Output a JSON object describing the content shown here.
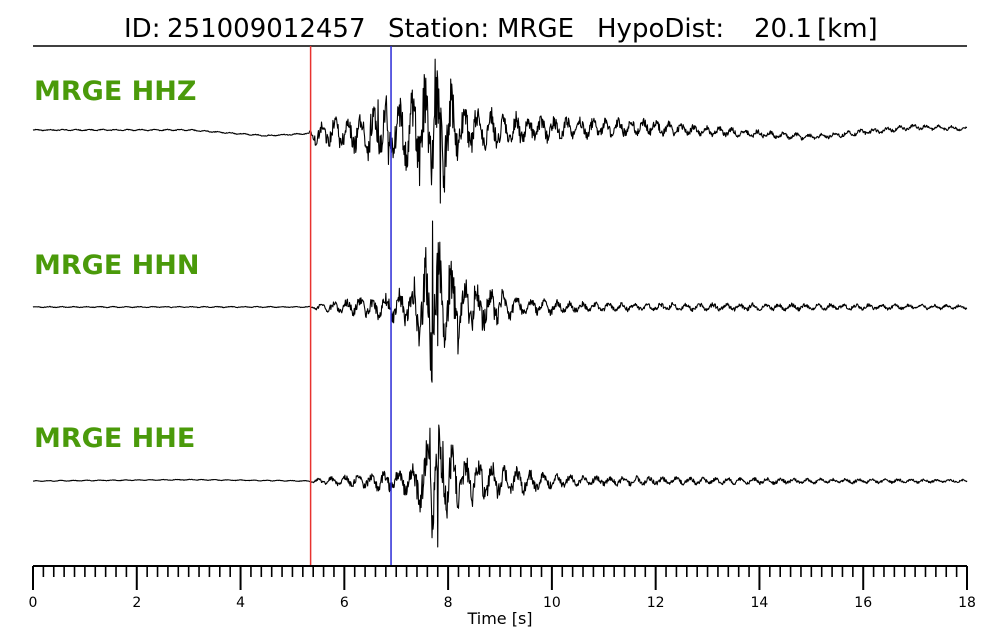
{
  "header": {
    "id_label": "ID:",
    "id_value": "251009012457",
    "station_label": "Station:",
    "station_value": "MRGE",
    "hypodist_label": "HypoDist:",
    "hypodist_value": "20.1",
    "hypodist_unit": "[km]"
  },
  "chart_data": {
    "type": "line",
    "xlabel": "Time [s]",
    "xlim": [
      0,
      18
    ],
    "major_ticks": [
      0,
      2,
      4,
      6,
      8,
      10,
      12,
      14,
      16,
      18
    ],
    "minor_tick_step": 0.2,
    "picks": [
      {
        "time": 5.35,
        "color": "#e8322f"
      },
      {
        "time": 6.9,
        "color": "#2b2bd6"
      }
    ],
    "label_color": "#4a9a0a",
    "trace_color": "#000000",
    "series": [
      {
        "name": "MRGE HHZ",
        "noise": 0.012,
        "env": [
          [
            0,
            0.012
          ],
          [
            5.3,
            0.012
          ],
          [
            5.45,
            0.18
          ],
          [
            6.2,
            0.3
          ],
          [
            6.7,
            0.55
          ],
          [
            7.1,
            0.5
          ],
          [
            7.6,
            0.95
          ],
          [
            7.8,
            1.0
          ],
          [
            8.3,
            0.5
          ],
          [
            9.0,
            0.28
          ],
          [
            10.5,
            0.16
          ],
          [
            12.0,
            0.12
          ],
          [
            13.5,
            0.07
          ],
          [
            15.0,
            0.05
          ],
          [
            18,
            0.04
          ]
        ],
        "drift": [
          [
            0,
            0
          ],
          [
            3,
            0
          ],
          [
            4.5,
            -0.08
          ],
          [
            5.3,
            -0.05
          ],
          [
            11.8,
            0.04
          ],
          [
            15.0,
            -0.1
          ],
          [
            17,
            0.04
          ],
          [
            18,
            0.02
          ]
        ],
        "period": 0.25,
        "seed": 11,
        "peaks": [
          [
            6.65,
            0.45
          ],
          [
            6.85,
            -0.45
          ],
          [
            7.3,
            0.4
          ],
          [
            7.75,
            1.0
          ],
          [
            7.85,
            -1.0
          ]
        ]
      },
      {
        "name": "MRGE HHN",
        "noise": 0.008,
        "env": [
          [
            0,
            0.008
          ],
          [
            5.3,
            0.008
          ],
          [
            5.45,
            0.05
          ],
          [
            6.3,
            0.12
          ],
          [
            6.9,
            0.18
          ],
          [
            7.3,
            0.28
          ],
          [
            7.7,
            1.0
          ],
          [
            7.9,
            0.75
          ],
          [
            8.5,
            0.35
          ],
          [
            9.5,
            0.12
          ],
          [
            11.0,
            0.06
          ],
          [
            14.0,
            0.05
          ],
          [
            18,
            0.03
          ]
        ],
        "drift": [
          [
            0,
            0
          ],
          [
            18,
            0
          ]
        ],
        "period": 0.25,
        "seed": 23,
        "peaks": [
          [
            7.7,
            1.0
          ],
          [
            7.8,
            -0.45
          ],
          [
            7.35,
            0.35
          ]
        ]
      },
      {
        "name": "MRGE HHE",
        "noise": 0.008,
        "env": [
          [
            0,
            0.008
          ],
          [
            5.3,
            0.008
          ],
          [
            5.45,
            0.04
          ],
          [
            6.3,
            0.12
          ],
          [
            6.9,
            0.2
          ],
          [
            7.3,
            0.25
          ],
          [
            7.6,
            0.85
          ],
          [
            7.75,
            0.95
          ],
          [
            8.2,
            0.45
          ],
          [
            9.0,
            0.3
          ],
          [
            10.0,
            0.12
          ],
          [
            12.0,
            0.07
          ],
          [
            15.0,
            0.05
          ],
          [
            18,
            0.03
          ]
        ],
        "drift": [
          [
            0,
            0
          ],
          [
            3,
            0.02
          ],
          [
            5.3,
            0
          ],
          [
            18,
            0
          ]
        ],
        "period": 0.25,
        "seed": 37,
        "peaks": [
          [
            7.65,
            0.8
          ],
          [
            7.8,
            -1.0
          ],
          [
            7.9,
            0.6
          ]
        ]
      }
    ]
  }
}
